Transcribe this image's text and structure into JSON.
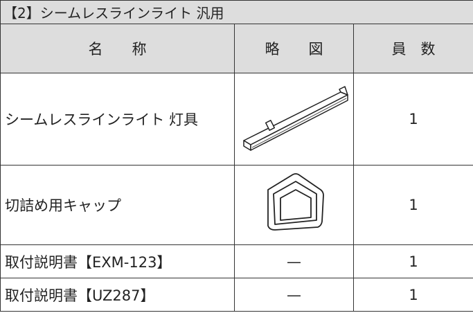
{
  "title": "【2】シームレスラインライト 汎用",
  "table": {
    "header": [
      "名　　称",
      "略　　図",
      "員　数"
    ],
    "rows": [
      {
        "name": "シームレスラインライト 灯具",
        "count": "1"
      },
      {
        "name": "切詰め用キャップ",
        "count": "1"
      },
      {
        "name": "取付説明書【EXM-123】",
        "sketch": "—",
        "count": "1"
      },
      {
        "name": "取付説明書【UZ287】",
        "sketch": "—",
        "count": "1"
      }
    ]
  }
}
